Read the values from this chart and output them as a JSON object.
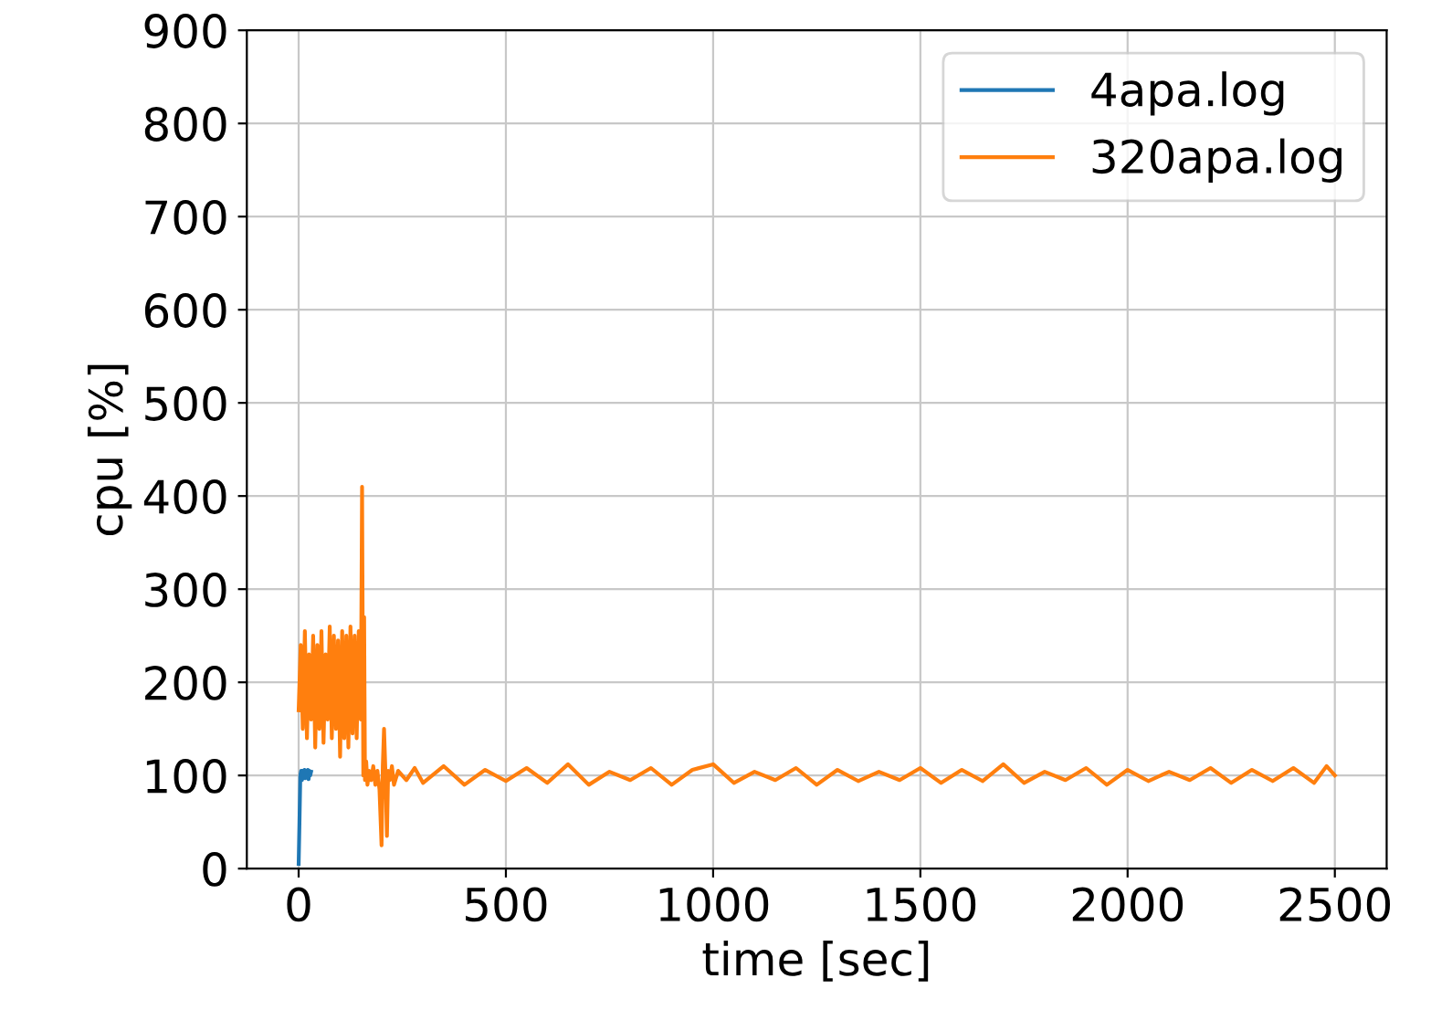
{
  "chart_data": {
    "type": "line",
    "xlabel": "time [sec]",
    "ylabel": "cpu [%]",
    "xlim": [
      -125,
      2625
    ],
    "ylim": [
      0,
      900
    ],
    "xticks": [
      0,
      500,
      1000,
      1500,
      2000,
      2500
    ],
    "yticks": [
      0,
      100,
      200,
      300,
      400,
      500,
      600,
      700,
      800,
      900
    ],
    "grid": true,
    "legend": "top right",
    "line_style": "solid",
    "marker": "none",
    "series": [
      {
        "name": "4apa.log",
        "color": "#1f77b4",
        "x": [
          0,
          2,
          4,
          6,
          8,
          10,
          12,
          14,
          16,
          18,
          20,
          22,
          24,
          26,
          28,
          30
        ],
        "values": [
          5,
          50,
          100,
          105,
          95,
          105,
          98,
          106,
          97,
          104,
          100,
          106,
          96,
          105,
          100,
          104
        ]
      },
      {
        "name": "320apa.log",
        "color": "#ff7f0e",
        "x": [
          0,
          5,
          10,
          15,
          20,
          25,
          30,
          35,
          40,
          45,
          50,
          55,
          60,
          65,
          70,
          75,
          80,
          85,
          90,
          95,
          100,
          105,
          110,
          115,
          120,
          125,
          130,
          135,
          140,
          145,
          150,
          153,
          156,
          158,
          160,
          163,
          166,
          170,
          175,
          180,
          185,
          190,
          195,
          200,
          203,
          206,
          210,
          213,
          216,
          220,
          225,
          230,
          240,
          260,
          280,
          300,
          350,
          400,
          450,
          500,
          550,
          600,
          650,
          700,
          750,
          800,
          850,
          900,
          950,
          1000,
          1050,
          1100,
          1150,
          1200,
          1250,
          1300,
          1350,
          1400,
          1450,
          1500,
          1550,
          1600,
          1650,
          1700,
          1750,
          1800,
          1850,
          1900,
          1950,
          2000,
          2050,
          2100,
          2150,
          2200,
          2250,
          2300,
          2350,
          2400,
          2450,
          2480,
          2500
        ],
        "values": [
          170,
          240,
          150,
          255,
          140,
          230,
          160,
          250,
          130,
          240,
          150,
          255,
          135,
          230,
          160,
          260,
          140,
          250,
          150,
          245,
          120,
          255,
          140,
          250,
          130,
          260,
          145,
          250,
          140,
          255,
          160,
          410,
          100,
          270,
          95,
          115,
          90,
          105,
          95,
          110,
          90,
          105,
          85,
          25,
          110,
          150,
          95,
          35,
          105,
          95,
          110,
          90,
          105,
          95,
          108,
          92,
          110,
          90,
          106,
          94,
          108,
          92,
          112,
          90,
          104,
          95,
          108,
          90,
          106,
          112,
          92,
          104,
          95,
          108,
          90,
          106,
          94,
          104,
          95,
          108,
          92,
          106,
          94,
          112,
          92,
          104,
          95,
          108,
          90,
          106,
          94,
          104,
          95,
          108,
          92,
          106,
          94,
          108,
          92,
          110,
          100
        ]
      }
    ]
  }
}
